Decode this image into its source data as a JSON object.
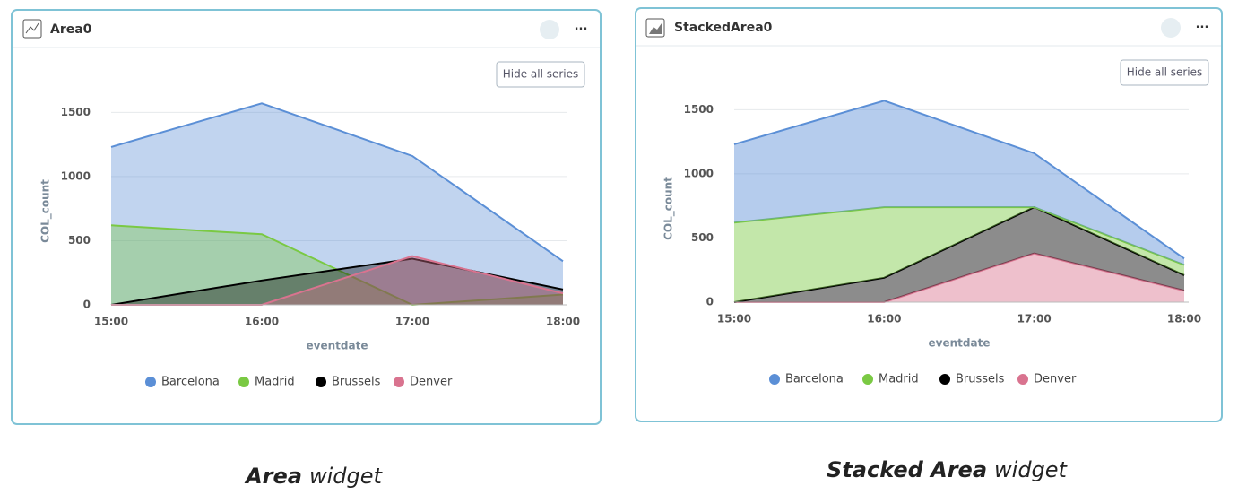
{
  "chart_data": [
    {
      "type": "area",
      "title": "Area0",
      "button": "Hide all series",
      "categories": [
        "15:00",
        "16:00",
        "17:00",
        "18:00"
      ],
      "series": [
        {
          "name": "Barcelona",
          "color": "#5b8fd6",
          "values": [
            1230,
            1570,
            1160,
            340
          ]
        },
        {
          "name": "Madrid",
          "color": "#7ac943",
          "values": [
            620,
            550,
            0,
            80
          ]
        },
        {
          "name": "Brussels",
          "color": "#000000",
          "values": [
            0,
            190,
            360,
            120
          ]
        },
        {
          "name": "Denver",
          "color": "#d9738f",
          "values": [
            0,
            0,
            380,
            90
          ]
        }
      ],
      "ylim": [
        0,
        1600
      ],
      "yticks": [
        0,
        500,
        1000,
        1500
      ],
      "xlabel": "eventdate",
      "ylabel": "COL_count",
      "caption": {
        "bold": "Area",
        "rest": "widget"
      }
    },
    {
      "type": "stacked_area",
      "title": "StackedArea0",
      "button": "Hide all series",
      "categories": [
        "15:00",
        "16:00",
        "17:00",
        "18:00"
      ],
      "series": [
        {
          "name": "Barcelona",
          "color": "#5b8fd6",
          "values": [
            610,
            830,
            420,
            50
          ]
        },
        {
          "name": "Madrid",
          "color": "#7ac943",
          "values": [
            620,
            550,
            0,
            80
          ]
        },
        {
          "name": "Brussels",
          "color": "#000000",
          "values": [
            0,
            190,
            360,
            120
          ]
        },
        {
          "name": "Denver",
          "color": "#d9738f",
          "values": [
            0,
            0,
            380,
            90
          ]
        }
      ],
      "ylim": [
        0,
        1600
      ],
      "yticks": [
        0,
        500,
        1000,
        1500
      ],
      "xlabel": "eventdate",
      "ylabel": "COL_count",
      "caption": {
        "bold": "Stacked Area",
        "rest": "widget"
      }
    }
  ]
}
